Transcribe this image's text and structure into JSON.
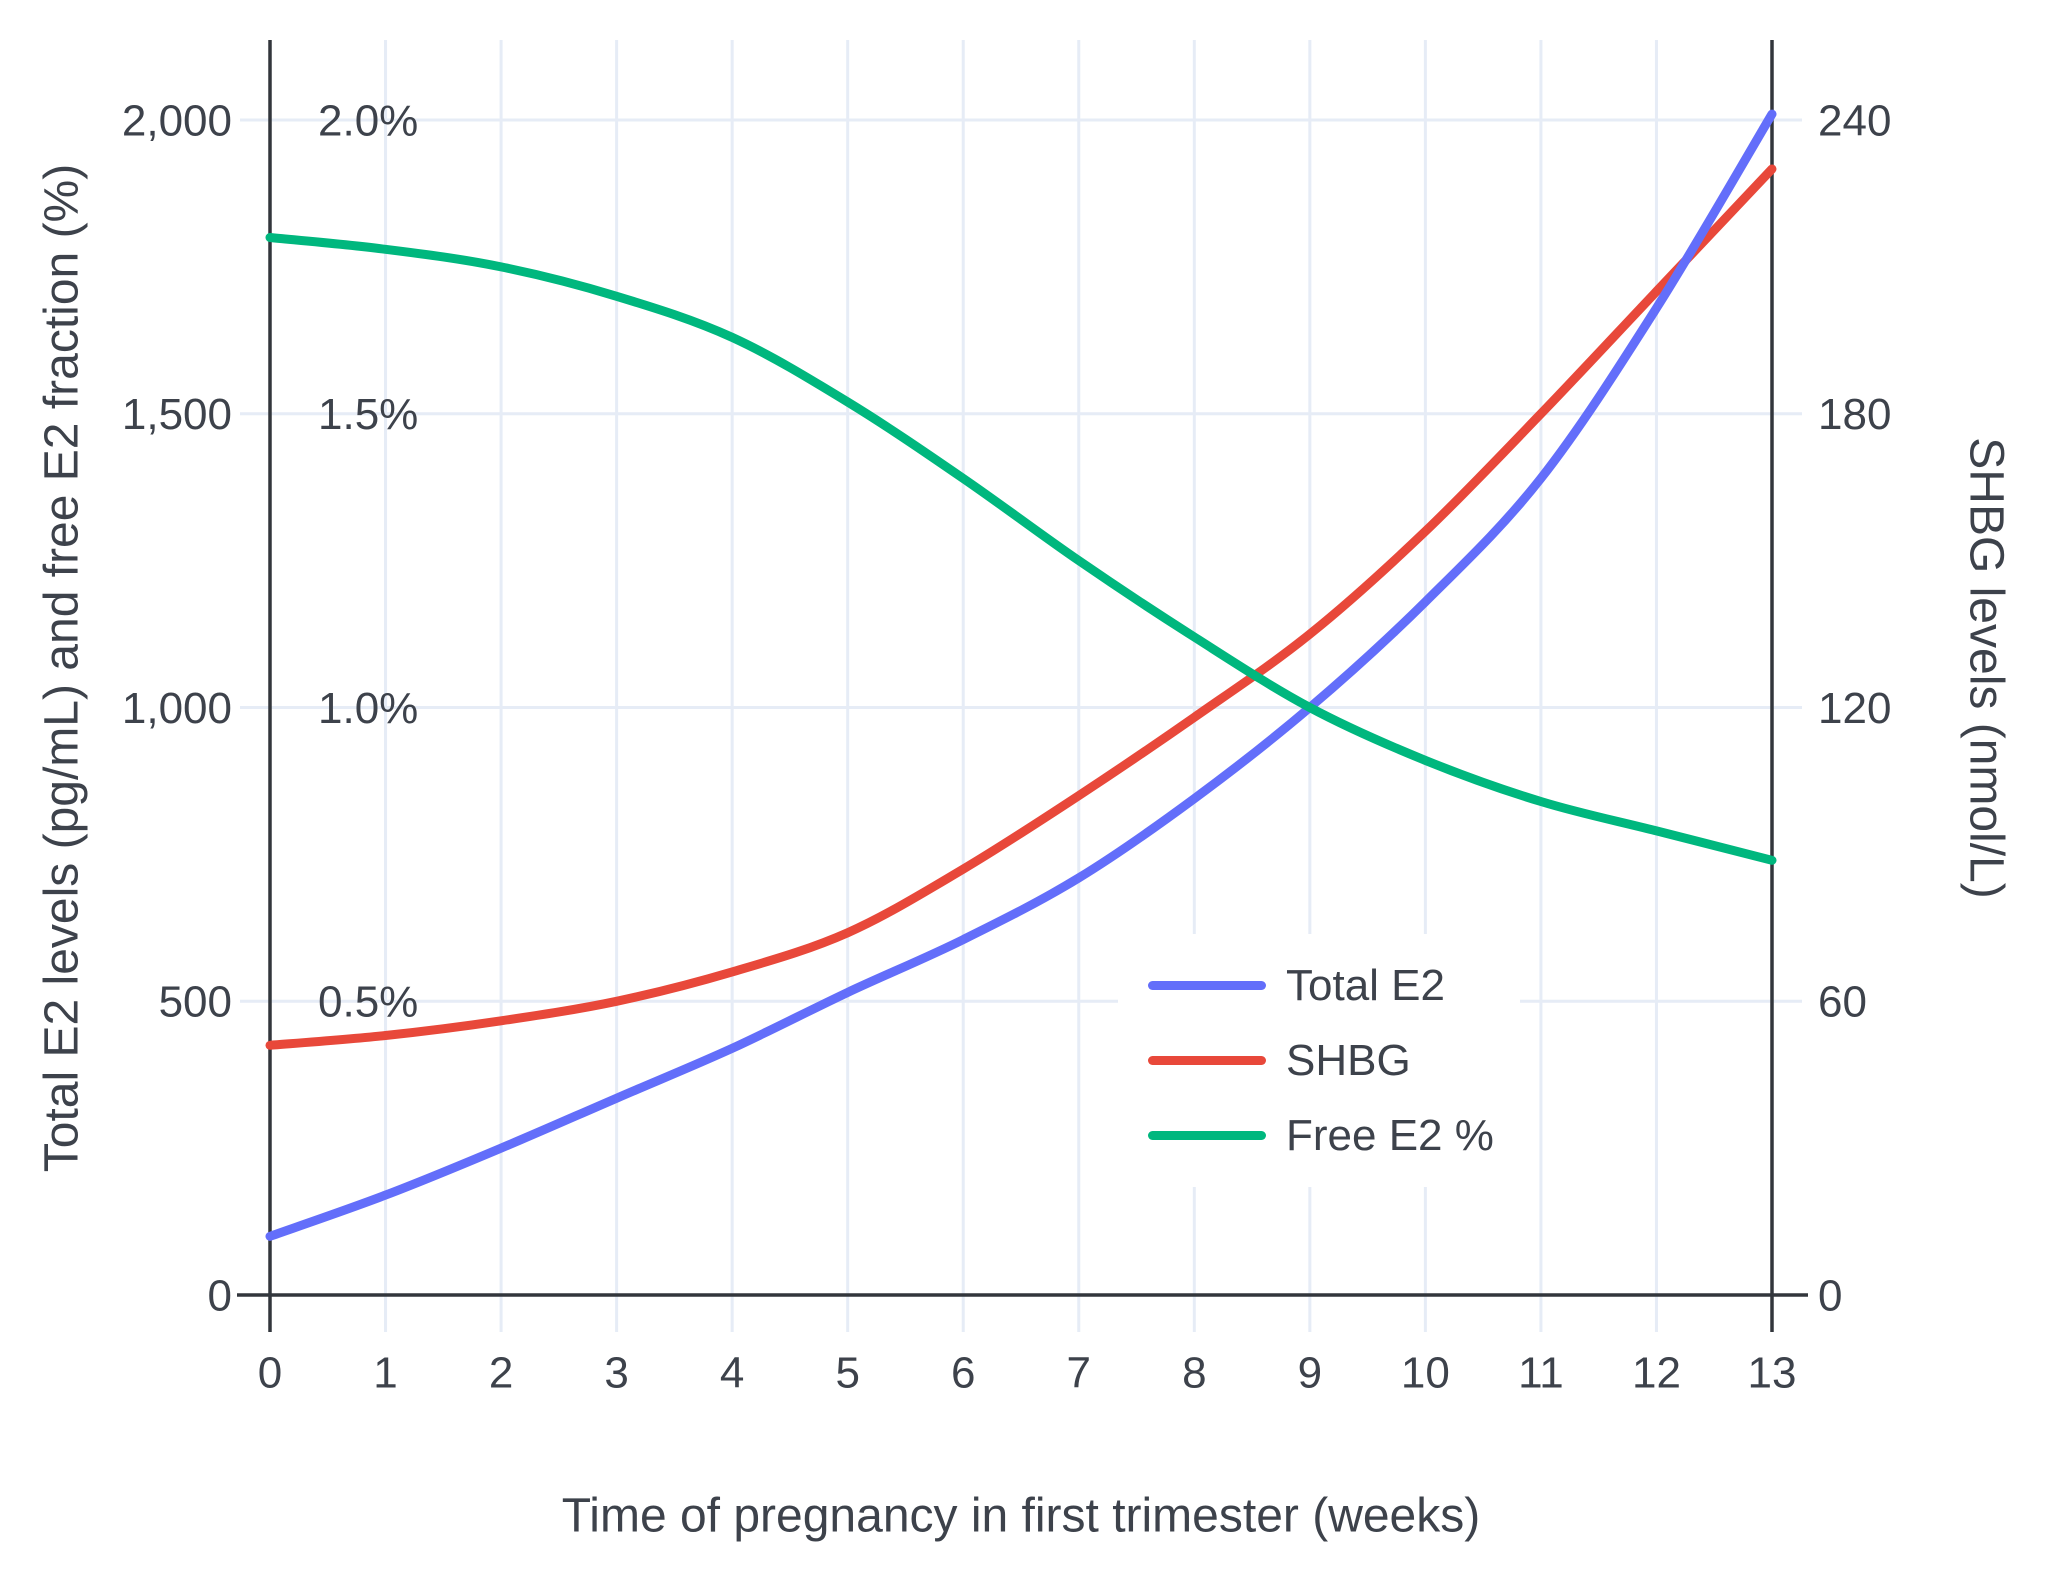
{
  "figure": {
    "background": "#ffffff",
    "text_color": "#3d424b",
    "axis_line_color": "#32363c",
    "grid_color": "#e6ecf6"
  },
  "axes": {
    "x": {
      "title": "Time of pregnancy in first trimester (weeks)",
      "tick_labels": [
        "0",
        "1",
        "2",
        "3",
        "4",
        "5",
        "6",
        "7",
        "8",
        "9",
        "10",
        "11",
        "12",
        "13"
      ],
      "tick_values": [
        0,
        1,
        2,
        3,
        4,
        5,
        6,
        7,
        8,
        9,
        10,
        11,
        12,
        13
      ],
      "range": [
        0,
        13
      ]
    },
    "y_left": {
      "title": "Total E2 levels (pg/mL) and free E2 fraction (%)",
      "tick_labels": [
        "0",
        "500",
        "1,000",
        "1,500",
        "2,000"
      ],
      "tick_values": [
        0,
        500,
        1000,
        1500,
        2000
      ],
      "range": [
        0,
        2000
      ]
    },
    "y_left_inner_percent": {
      "labels": [
        "0.5%",
        "1.0%",
        "1.5%",
        "2.0%"
      ],
      "values": [
        0.5,
        1.0,
        1.5,
        2.0
      ]
    },
    "y_right": {
      "title": "SHBG levels (nmol/L)",
      "tick_labels": [
        "0",
        "60",
        "120",
        "180",
        "240"
      ],
      "tick_values": [
        0,
        60,
        120,
        180,
        240
      ],
      "range": [
        0,
        240
      ]
    }
  },
  "chart_data": {
    "type": "line",
    "title": "",
    "x": [
      0,
      1,
      2,
      3,
      4,
      5,
      6,
      7,
      8,
      9,
      10,
      11,
      12,
      13
    ],
    "grid": true,
    "legend_position": "inside lower-right",
    "series": [
      {
        "name": "Total E2",
        "axis": "left",
        "units": "pg/mL",
        "color": "#636EFA",
        "values": [
          100,
          170,
          250,
          335,
          420,
          515,
          605,
          710,
          845,
          1000,
          1180,
          1390,
          1680,
          2010
        ]
      },
      {
        "name": "SHBG",
        "axis": "right",
        "units": "nmol/L",
        "color": "#E8483A",
        "values": [
          51,
          53,
          56,
          60,
          66,
          74,
          87,
          102,
          118,
          135,
          156,
          180,
          205,
          230
        ]
      },
      {
        "name": "Free E2 %",
        "axis": "percent",
        "units": "%",
        "color": "#00B77E",
        "values": [
          1.8,
          1.78,
          1.75,
          1.7,
          1.63,
          1.52,
          1.39,
          1.25,
          1.12,
          1.0,
          0.91,
          0.84,
          0.79,
          0.74
        ]
      }
    ]
  }
}
